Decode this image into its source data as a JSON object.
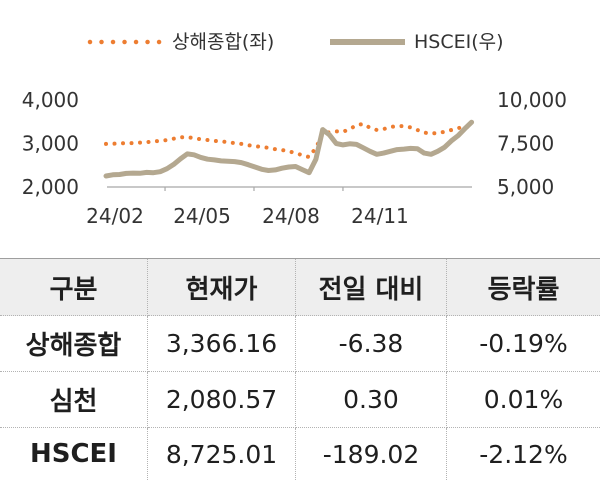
{
  "chart_data": {
    "type": "line",
    "legend_position": "top",
    "grid": false,
    "x": [
      "2024-03-01",
      "2024-03-08",
      "2024-03-15",
      "2024-03-22",
      "2024-03-29",
      "2024-04-05",
      "2024-04-12",
      "2024-04-19",
      "2024-04-26",
      "2024-05-03",
      "2024-05-10",
      "2024-05-17",
      "2024-05-24",
      "2024-05-31",
      "2024-06-07",
      "2024-06-14",
      "2024-06-21",
      "2024-06-28",
      "2024-07-05",
      "2024-07-12",
      "2024-07-19",
      "2024-07-26",
      "2024-08-02",
      "2024-08-09",
      "2024-08-16",
      "2024-08-23",
      "2024-08-30",
      "2024-09-06",
      "2024-09-13",
      "2024-09-20",
      "2024-09-27",
      "2024-10-04",
      "2024-10-11",
      "2024-10-18",
      "2024-10-25",
      "2024-11-01",
      "2024-11-08",
      "2024-11-15",
      "2024-11-22",
      "2024-11-29",
      "2024-12-06",
      "2024-12-13",
      "2024-12-20",
      "2024-12-27",
      "2025-01-03",
      "2025-01-10",
      "2025-01-17",
      "2025-01-24",
      "2025-01-31",
      "2025-02-07",
      "2025-02-14",
      "2025-02-21",
      "2025-02-28",
      "2025-03-07",
      "2025-03-14"
    ],
    "x_ticks": [
      "2024-02-01",
      "2024-05-01",
      "2024-08-01",
      "2024-11-01"
    ],
    "x_tick_labels": [
      "24/02",
      "24/05",
      "24/08",
      "24/11"
    ],
    "y_left": {
      "range": [
        2000,
        4000
      ],
      "ticks": [
        4000,
        3000,
        2000
      ],
      "tick_labels": [
        "4,000",
        "3,000",
        "2,000"
      ]
    },
    "y_right": {
      "range": [
        5000,
        10000
      ],
      "ticks": [
        10000,
        7500,
        5000
      ],
      "tick_labels": [
        "10,000",
        "7,500",
        "5,000"
      ]
    },
    "series": [
      {
        "name": "상해종합(좌)",
        "axis": "left",
        "style": "dotted",
        "color": "#ED7D31",
        "values": [
          2990,
          2995,
          3000,
          3010,
          3010,
          3020,
          3030,
          3050,
          3060,
          3080,
          3110,
          3140,
          3150,
          3120,
          3100,
          3080,
          3060,
          3050,
          3030,
          3010,
          2990,
          2960,
          2940,
          2920,
          2900,
          2870,
          2850,
          2820,
          2780,
          2730,
          2690,
          2900,
          3220,
          3260,
          3280,
          3270,
          3330,
          3420,
          3450,
          3360,
          3310,
          3330,
          3380,
          3400,
          3400,
          3370,
          3310,
          3250,
          3230,
          3240,
          3270,
          3310,
          3350,
          3400,
          3366.16
        ]
      },
      {
        "name": "HSCEI(우)",
        "axis": "right",
        "style": "solid",
        "color": "#B4A890",
        "values": [
          5630,
          5700,
          5720,
          5780,
          5800,
          5790,
          5840,
          5820,
          5880,
          6050,
          6300,
          6620,
          6900,
          6850,
          6700,
          6600,
          6560,
          6500,
          6480,
          6460,
          6400,
          6280,
          6150,
          6020,
          5950,
          5980,
          6080,
          6150,
          6180,
          6000,
          5820,
          6600,
          8300,
          8000,
          7500,
          7420,
          7480,
          7450,
          7250,
          7050,
          6880,
          6950,
          7050,
          7150,
          7180,
          7220,
          7200,
          6950,
          6880,
          7050,
          7280,
          7650,
          7950,
          8350,
          8725.01
        ]
      }
    ]
  },
  "table": {
    "headers": [
      "구분",
      "현재가",
      "전일 대비",
      "등락률"
    ],
    "rows": [
      [
        "상해종합",
        "3,366.16",
        "-6.38",
        "-0.19%"
      ],
      [
        "심천",
        "2,080.57",
        "0.30",
        "0.01%"
      ],
      [
        "HSCEI",
        "8,725.01",
        "-189.02",
        "-2.12%"
      ]
    ]
  }
}
